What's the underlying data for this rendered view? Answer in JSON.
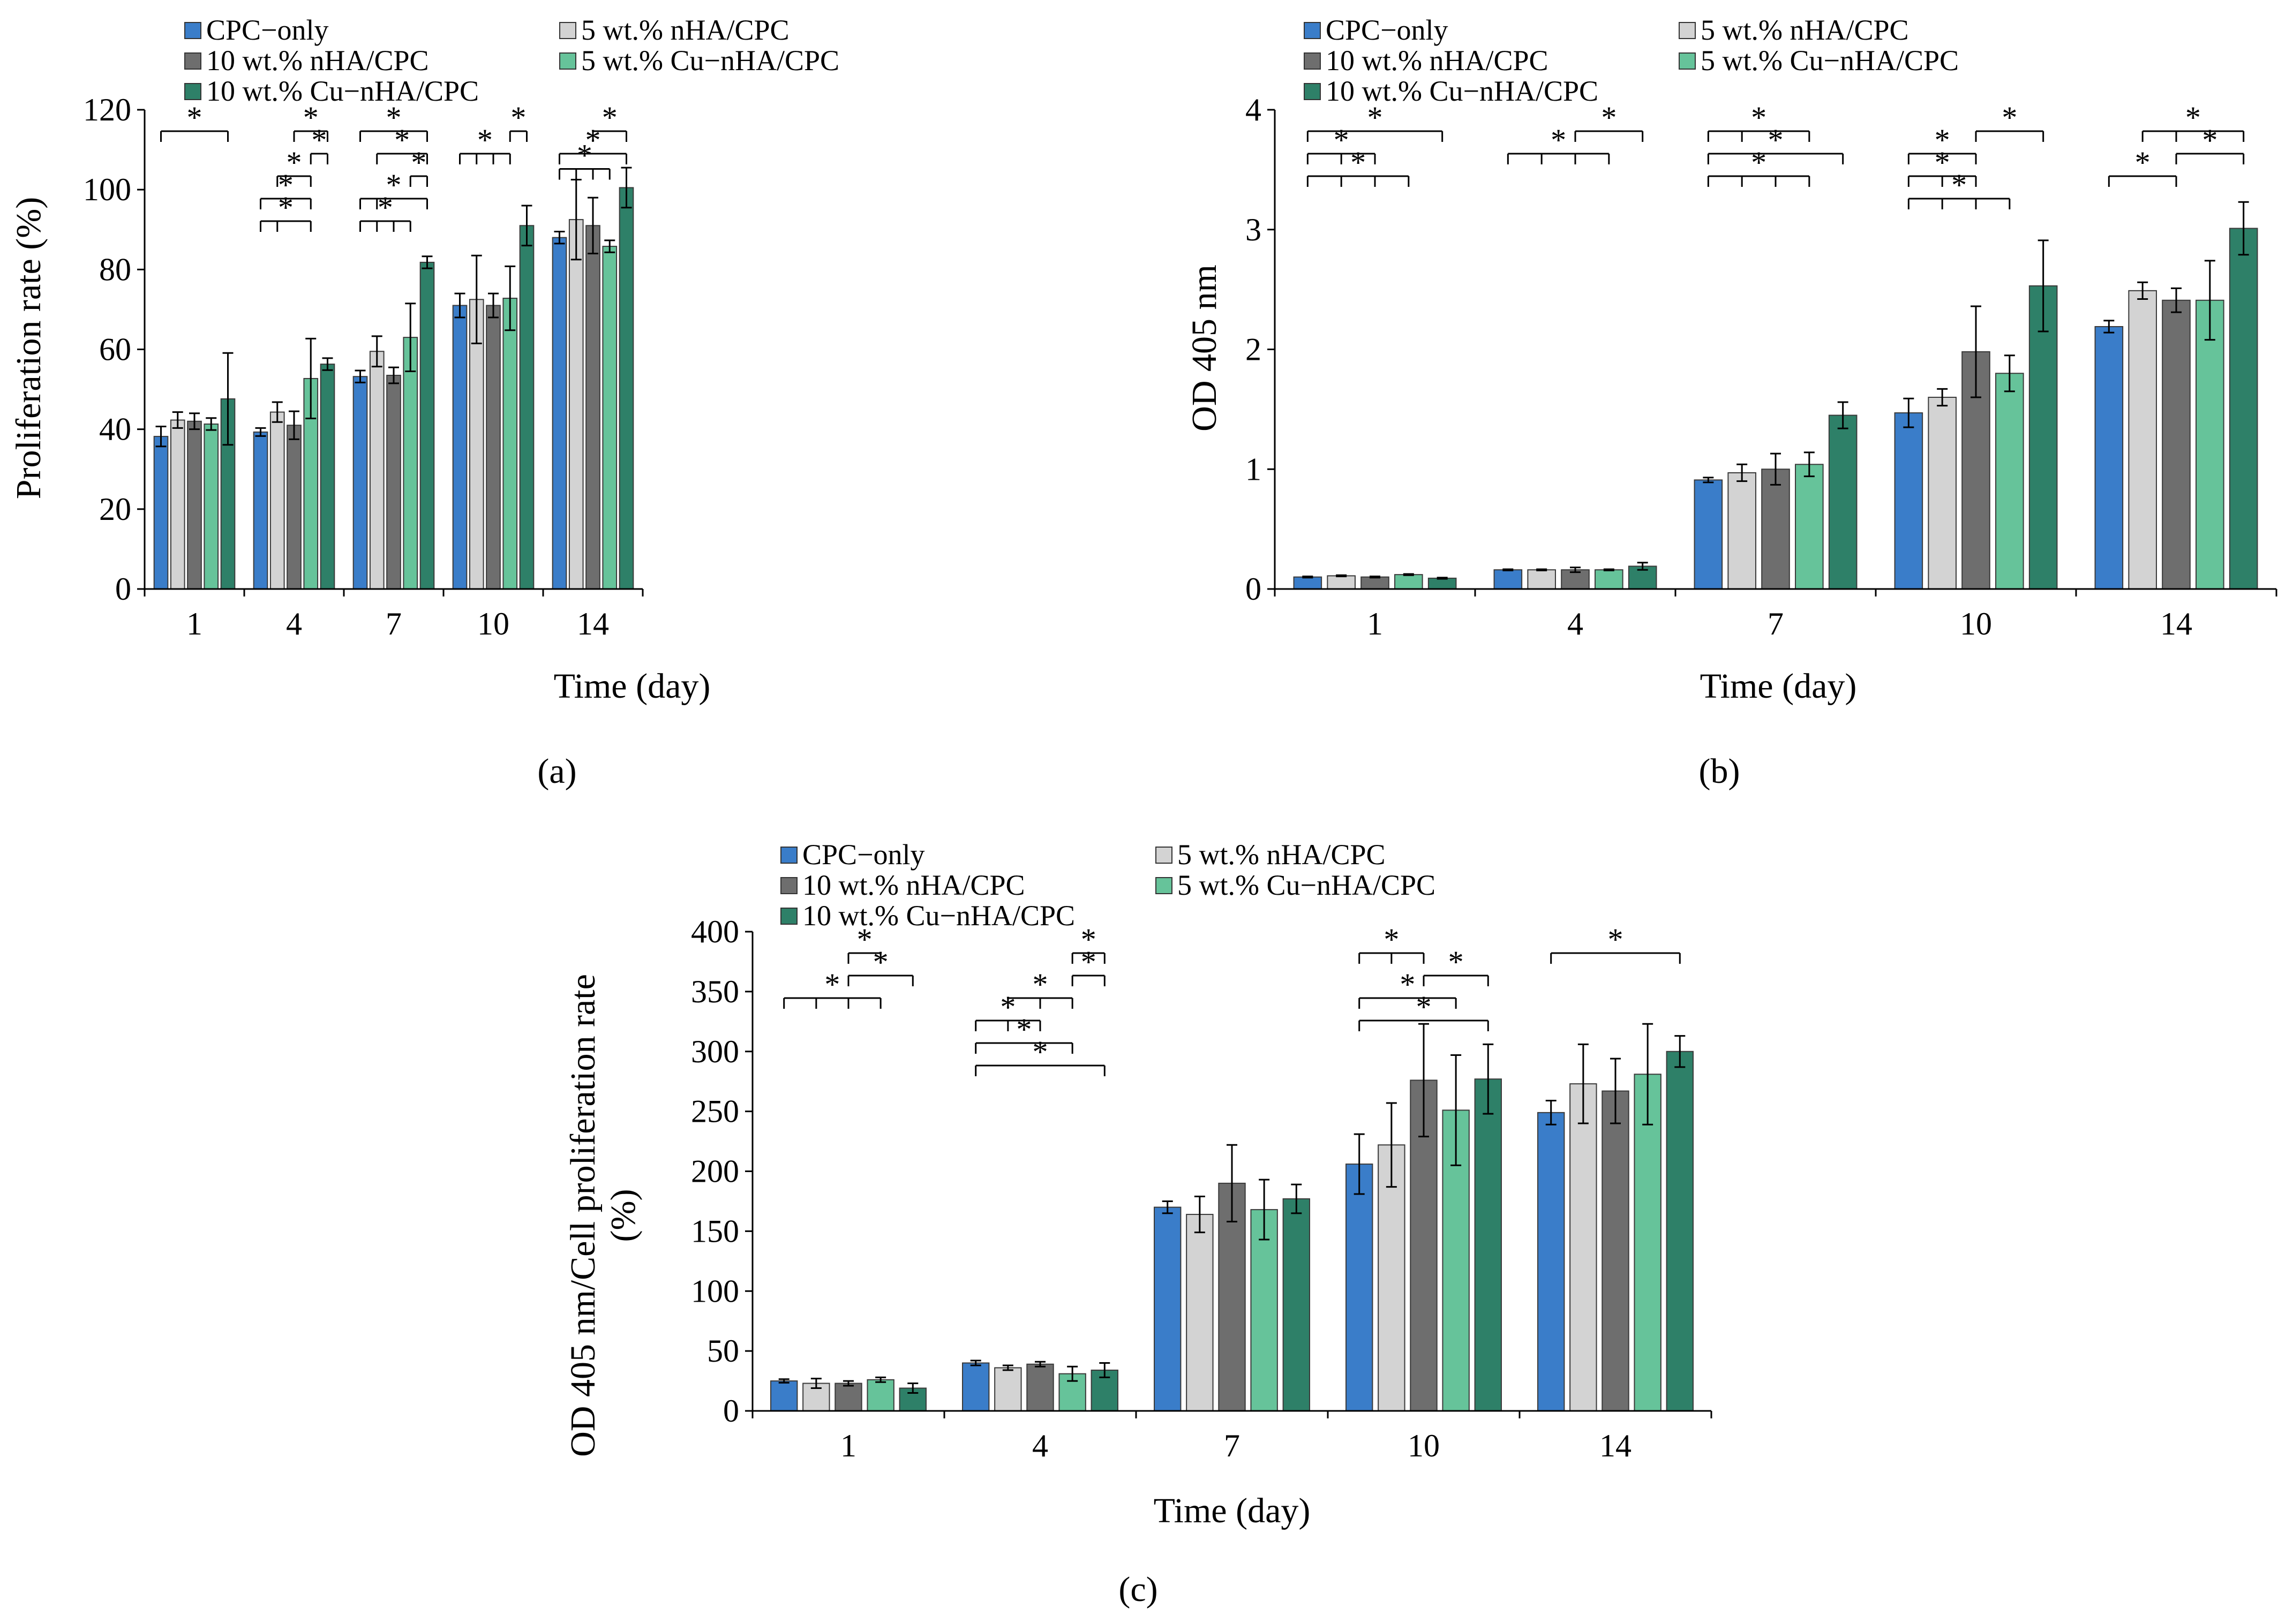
{
  "series_names": [
    "CPC−only",
    "5 wt.% nHA/CPC",
    "10 wt.% nHA/CPC",
    "5 wt.% Cu−nHA/CPC",
    "10 wt.% Cu−nHA/CPC"
  ],
  "colors": [
    "#3a7dc9",
    "#d3d3d3",
    "#6e6e6e",
    "#66c39a",
    "#2e8068"
  ],
  "significance_marker": "*",
  "chart_data": [
    {
      "type": "bar",
      "panel_label": "(a)",
      "xlabel": "Time (day)",
      "ylabel": "Proliferation  rate (%)",
      "categories": [
        "1",
        "4",
        "7",
        "10",
        "14"
      ],
      "ylim": [
        0,
        120
      ],
      "yticks": [
        0,
        20,
        40,
        60,
        80,
        100,
        120
      ],
      "series": [
        {
          "name": "CPC−only",
          "values": [
            38.2,
            39.3,
            53.2,
            71.0,
            88.0
          ],
          "errors": [
            2.5,
            1.0,
            1.5,
            3.0,
            1.5
          ]
        },
        {
          "name": "5 wt.% nHA/CPC",
          "values": [
            42.3,
            44.3,
            59.5,
            72.5,
            92.5
          ],
          "errors": [
            2.0,
            2.5,
            3.8,
            11.0,
            10.0
          ]
        },
        {
          "name": "10 wt.% nHA/CPC",
          "values": [
            42.0,
            41.0,
            53.5,
            71.0,
            91.0
          ],
          "errors": [
            2.0,
            3.5,
            2.0,
            3.0,
            7.0
          ]
        },
        {
          "name": "5 wt.% Cu−nHA/CPC",
          "values": [
            41.3,
            52.7,
            63.0,
            72.8,
            85.8
          ],
          "errors": [
            1.5,
            10.0,
            8.5,
            8.0,
            1.5
          ]
        },
        {
          "name": "10 wt.% Cu−nHA/CPC",
          "values": [
            47.6,
            56.3,
            81.8,
            91.0,
            100.5
          ],
          "errors": [
            11.5,
            1.5,
            1.5,
            5.0,
            5.0
          ]
        }
      ]
    },
    {
      "type": "bar",
      "panel_label": "(b)",
      "xlabel": "Time (day)",
      "ylabel": "OD 405 nm",
      "categories": [
        "1",
        "4",
        "7",
        "10",
        "14"
      ],
      "ylim": [
        0,
        4
      ],
      "yticks": [
        0,
        1,
        2,
        3,
        4
      ],
      "series": [
        {
          "name": "CPC−only",
          "values": [
            0.1,
            0.16,
            0.91,
            1.47,
            2.19
          ],
          "errors": [
            0.005,
            0.005,
            0.02,
            0.12,
            0.05
          ]
        },
        {
          "name": "5 wt.% nHA/CPC",
          "values": [
            0.11,
            0.16,
            0.97,
            1.6,
            2.49
          ],
          "errors": [
            0.005,
            0.005,
            0.07,
            0.07,
            0.07
          ]
        },
        {
          "name": "10 wt.% nHA/CPC",
          "values": [
            0.1,
            0.16,
            1.0,
            1.98,
            2.41
          ],
          "errors": [
            0.005,
            0.02,
            0.13,
            0.38,
            0.1
          ]
        },
        {
          "name": "5 wt.% Cu−nHA/CPC",
          "values": [
            0.12,
            0.16,
            1.04,
            1.8,
            2.41
          ],
          "errors": [
            0.005,
            0.005,
            0.1,
            0.15,
            0.33
          ]
        },
        {
          "name": "10 wt.% Cu−nHA/CPC",
          "values": [
            0.09,
            0.19,
            1.45,
            2.53,
            3.01
          ],
          "errors": [
            0.005,
            0.03,
            0.11,
            0.38,
            0.22
          ]
        }
      ]
    },
    {
      "type": "bar",
      "panel_label": "(c)",
      "xlabel": "Time (day)",
      "ylabel": "OD 405 nm/Cell proliferation rate",
      "ylabel2": "(%)",
      "categories": [
        "1",
        "4",
        "7",
        "10",
        "14"
      ],
      "ylim": [
        0,
        400
      ],
      "yticks": [
        0,
        50,
        100,
        150,
        200,
        250,
        300,
        350,
        400
      ],
      "series": [
        {
          "name": "CPC−only",
          "values": [
            25,
            40,
            170,
            206,
            249
          ],
          "errors": [
            1.5,
            2,
            5,
            25,
            10
          ]
        },
        {
          "name": "5 wt.% nHA/CPC",
          "values": [
            23,
            36,
            164,
            222,
            273
          ],
          "errors": [
            4,
            2,
            15,
            35,
            33
          ]
        },
        {
          "name": "10 wt.% nHA/CPC",
          "values": [
            23,
            39,
            190,
            276,
            267
          ],
          "errors": [
            2,
            2,
            32,
            47,
            27
          ]
        },
        {
          "name": "5 wt.% Cu−nHA/CPC",
          "values": [
            26,
            31,
            168,
            251,
            281
          ],
          "errors": [
            2,
            6,
            25,
            46,
            42
          ]
        },
        {
          "name": "10 wt.% Cu−nHA/CPC",
          "values": [
            19,
            34,
            177,
            277,
            300
          ],
          "errors": [
            4,
            6,
            12,
            29,
            13
          ]
        }
      ]
    }
  ]
}
